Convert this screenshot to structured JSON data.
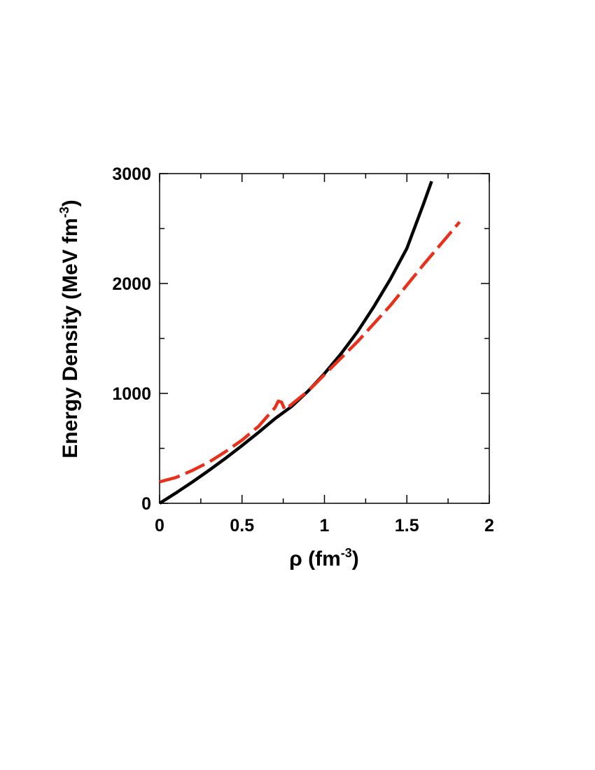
{
  "chart_data": {
    "type": "line",
    "xlabel": [
      "ρ (fm",
      "-3",
      ")"
    ],
    "ylabel": [
      "Energy Density (MeV fm",
      "-3",
      ")"
    ],
    "xlim": [
      0,
      2
    ],
    "ylim": [
      0,
      3000
    ],
    "xticks": [
      0,
      0.5,
      1,
      1.5,
      2
    ],
    "yticks": [
      0,
      1000,
      2000,
      3000
    ],
    "x_minor_ticks": [
      0.25,
      0.75,
      1.25,
      1.75
    ],
    "y_minor_ticks": [
      500,
      1500,
      2500
    ],
    "series": [
      {
        "color": "#000000",
        "dash": false,
        "x": [
          0,
          0.1,
          0.2,
          0.3,
          0.4,
          0.5,
          0.6,
          0.7,
          0.8,
          0.9,
          1.0,
          1.1,
          1.2,
          1.3,
          1.4,
          1.5,
          1.6,
          1.65
        ],
        "values": [
          0,
          95,
          195,
          300,
          410,
          525,
          645,
          770,
          880,
          1020,
          1180,
          1360,
          1560,
          1790,
          2040,
          2320,
          2720,
          2930
        ]
      },
      {
        "color": "#e8301a",
        "dash": true,
        "x": [
          0,
          0.1,
          0.2,
          0.3,
          0.4,
          0.5,
          0.6,
          0.7,
          0.72,
          0.74,
          0.76,
          0.8,
          0.9,
          1.0,
          1.2,
          1.4,
          1.6,
          1.82
        ],
        "values": [
          195,
          235,
          300,
          375,
          470,
          575,
          700,
          870,
          930,
          920,
          850,
          900,
          1020,
          1170,
          1470,
          1800,
          2170,
          2560
        ]
      }
    ]
  }
}
